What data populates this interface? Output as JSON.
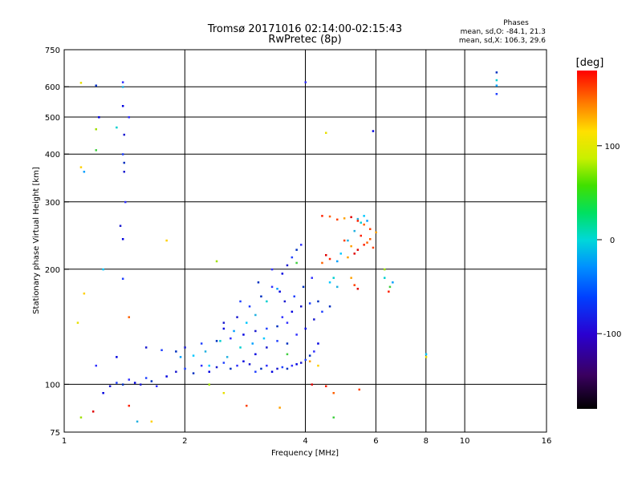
{
  "chart_data": {
    "type": "scatter",
    "title": "Tromsø 20171016 02:14:00-02:15:43",
    "subtitle": "RwPretec (8p)",
    "annotation": {
      "heading": "Phases",
      "line1": "mean, sd,O: -84.1, 21.3",
      "line2": "mean, sd,X: 106.3, 29.6"
    },
    "xlabel": "Frequency [MHz]",
    "ylabel": "Stationary phase Virtual Height [km]",
    "xscale": "log",
    "yscale": "log",
    "xlim": [
      1,
      16
    ],
    "ylim": [
      75,
      750
    ],
    "xticks": [
      1,
      2,
      4,
      6,
      8,
      10,
      16
    ],
    "yticks": [
      75,
      100,
      200,
      300,
      400,
      500,
      600,
      750
    ],
    "xgrid": [
      2,
      4,
      6,
      8,
      10
    ],
    "ygrid": [
      100,
      200,
      300,
      400,
      500,
      600
    ],
    "colorbar": {
      "label": "[deg]",
      "range": [
        -180,
        180
      ],
      "ticks": [
        -100,
        0,
        100
      ],
      "tick_labels": [
        "-100",
        "0",
        "100"
      ]
    },
    "series": [
      {
        "name": "Blue dense trace (O-mode)",
        "points": [
          [
            1.25,
            95
          ],
          [
            1.3,
            99
          ],
          [
            1.35,
            101
          ],
          [
            1.4,
            100
          ],
          [
            1.45,
            103
          ],
          [
            1.5,
            101
          ],
          [
            1.55,
            100
          ],
          [
            1.6,
            104
          ],
          [
            1.65,
            102
          ],
          [
            1.7,
            99
          ],
          [
            1.8,
            105
          ],
          [
            1.9,
            108
          ],
          [
            2.0,
            110
          ],
          [
            2.1,
            107
          ],
          [
            2.2,
            112
          ],
          [
            2.3,
            108
          ],
          [
            2.4,
            111
          ],
          [
            2.5,
            114
          ],
          [
            2.6,
            110
          ],
          [
            2.7,
            112
          ],
          [
            2.8,
            115
          ],
          [
            2.9,
            113
          ],
          [
            3.0,
            108
          ],
          [
            3.1,
            110
          ],
          [
            3.2,
            112
          ],
          [
            3.3,
            108
          ],
          [
            3.4,
            110
          ],
          [
            3.5,
            111
          ],
          [
            3.6,
            110
          ],
          [
            3.7,
            112
          ],
          [
            3.8,
            113
          ],
          [
            3.9,
            114
          ],
          [
            4.0,
            116
          ],
          [
            4.1,
            119
          ],
          [
            4.2,
            122
          ],
          [
            4.3,
            128
          ],
          [
            2.0,
            125
          ],
          [
            2.2,
            128
          ],
          [
            2.4,
            130
          ],
          [
            2.6,
            132
          ],
          [
            2.8,
            135
          ],
          [
            3.0,
            138
          ],
          [
            3.2,
            140
          ],
          [
            3.4,
            142
          ],
          [
            3.6,
            145
          ],
          [
            2.5,
            140
          ],
          [
            2.7,
            150
          ],
          [
            2.9,
            160
          ],
          [
            3.1,
            170
          ],
          [
            3.3,
            180
          ],
          [
            3.5,
            195
          ],
          [
            3.6,
            205
          ],
          [
            3.7,
            215
          ],
          [
            3.8,
            225
          ],
          [
            3.9,
            232
          ],
          [
            3.0,
            120
          ],
          [
            3.2,
            125
          ],
          [
            3.4,
            130
          ],
          [
            3.6,
            128
          ],
          [
            3.8,
            135
          ],
          [
            4.0,
            140
          ],
          [
            4.2,
            148
          ],
          [
            4.4,
            155
          ],
          [
            4.6,
            160
          ],
          [
            3.5,
            150
          ],
          [
            3.7,
            155
          ],
          [
            3.9,
            160
          ],
          [
            4.1,
            163
          ],
          [
            4.3,
            165
          ],
          [
            1.2,
            112
          ],
          [
            1.35,
            118
          ],
          [
            1.6,
            125
          ],
          [
            1.75,
            123
          ],
          [
            1.9,
            122
          ],
          [
            1.4,
            617
          ],
          [
            1.4,
            535
          ],
          [
            1.41,
            450
          ],
          [
            1.4,
            400
          ],
          [
            1.41,
            380
          ],
          [
            1.42,
            300
          ],
          [
            1.4,
            240
          ],
          [
            1.38,
            260
          ],
          [
            1.4,
            189
          ],
          [
            1.2,
            605
          ],
          [
            1.45,
            500
          ],
          [
            1.22,
            500
          ],
          [
            1.41,
            360
          ],
          [
            12,
            575
          ],
          [
            12,
            655
          ],
          [
            4.0,
            617
          ],
          [
            5.9,
            460
          ],
          [
            2.5,
            145
          ],
          [
            2.75,
            165
          ],
          [
            3.05,
            185
          ],
          [
            3.3,
            200
          ],
          [
            3.45,
            175
          ],
          [
            3.55,
            165
          ],
          [
            3.75,
            170
          ],
          [
            3.95,
            180
          ],
          [
            4.15,
            190
          ]
        ]
      },
      {
        "name": "Cyan trace",
        "points": [
          [
            1.95,
            118
          ],
          [
            2.1,
            119
          ],
          [
            2.25,
            122
          ],
          [
            2.45,
            130
          ],
          [
            2.65,
            138
          ],
          [
            2.85,
            145
          ],
          [
            3.0,
            152
          ],
          [
            3.2,
            165
          ],
          [
            3.4,
            178
          ],
          [
            2.3,
            112
          ],
          [
            2.55,
            118
          ],
          [
            2.75,
            125
          ],
          [
            2.95,
            128
          ],
          [
            3.15,
            132
          ],
          [
            5.3,
            252
          ],
          [
            5.5,
            265
          ],
          [
            5.7,
            268
          ],
          [
            5.6,
            276
          ],
          [
            5.4,
            271
          ],
          [
            4.7,
            190
          ],
          [
            4.8,
            210
          ],
          [
            4.9,
            220
          ],
          [
            5.1,
            238
          ],
          [
            6.3,
            190
          ],
          [
            6.6,
            185
          ],
          [
            4.6,
            185
          ],
          [
            4.8,
            180
          ],
          [
            12,
            625
          ],
          [
            12,
            605
          ],
          [
            1.25,
            200
          ],
          [
            1.4,
            600
          ],
          [
            1.35,
            470
          ],
          [
            1.12,
            360
          ],
          [
            8.0,
            120
          ],
          [
            1.52,
            80
          ]
        ]
      },
      {
        "name": "Red/orange trace (X-mode)",
        "points": [
          [
            4.4,
            276
          ],
          [
            4.6,
            275
          ],
          [
            4.8,
            270
          ],
          [
            5.0,
            272
          ],
          [
            5.2,
            274
          ],
          [
            5.4,
            268
          ],
          [
            5.6,
            262
          ],
          [
            5.8,
            255
          ],
          [
            6.0,
            250
          ],
          [
            4.5,
            218
          ],
          [
            4.6,
            213
          ],
          [
            4.4,
            208
          ],
          [
            5.0,
            238
          ],
          [
            5.2,
            230
          ],
          [
            5.4,
            225
          ],
          [
            5.6,
            232
          ],
          [
            5.8,
            240
          ],
          [
            5.9,
            228
          ],
          [
            5.1,
            215
          ],
          [
            5.3,
            220
          ],
          [
            5.5,
            245
          ],
          [
            5.7,
            235
          ],
          [
            5.3,
            182
          ],
          [
            5.2,
            190
          ],
          [
            5.4,
            178
          ],
          [
            6.45,
            175
          ],
          [
            1.45,
            150
          ],
          [
            2.85,
            88
          ],
          [
            3.45,
            87
          ],
          [
            4.15,
            100
          ],
          [
            4.5,
            99
          ],
          [
            4.7,
            95
          ],
          [
            5.45,
            97
          ],
          [
            4.1,
            115
          ],
          [
            1.18,
            85
          ],
          [
            1.45,
            88
          ]
        ]
      },
      {
        "name": "Yellow/green sparse",
        "points": [
          [
            1.1,
            615
          ],
          [
            1.1,
            370
          ],
          [
            1.2,
            465
          ],
          [
            1.2,
            410
          ],
          [
            4.5,
            455
          ],
          [
            1.8,
            238
          ],
          [
            2.4,
            210
          ],
          [
            3.8,
            208
          ],
          [
            1.08,
            145
          ],
          [
            1.12,
            173
          ],
          [
            6.3,
            200
          ],
          [
            6.5,
            180
          ],
          [
            8.0,
            118
          ],
          [
            1.65,
            80
          ],
          [
            1.1,
            82
          ],
          [
            4.7,
            82
          ],
          [
            2.5,
            95
          ],
          [
            4.3,
            112
          ],
          [
            2.3,
            100
          ],
          [
            3.6,
            120
          ]
        ]
      }
    ]
  }
}
